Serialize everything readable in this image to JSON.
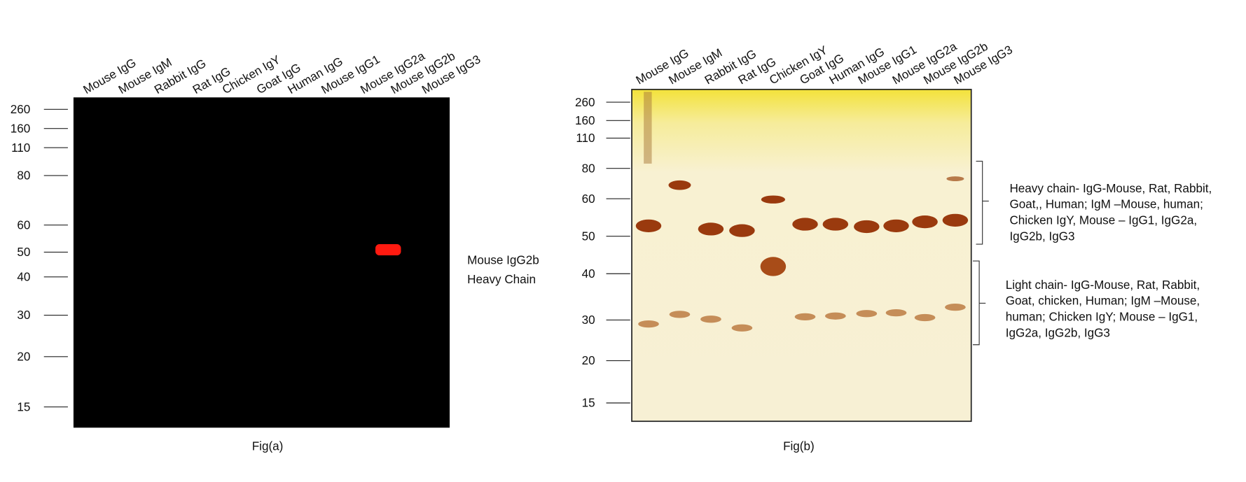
{
  "panel_a": {
    "lanes": [
      "Mouse IgG",
      "Mouse IgM",
      "Rabbit IgG",
      "Rat IgG",
      "Chicken IgY",
      "Goat IgG",
      "Human IgG",
      "Mouse IgG1",
      "Mouse IgG2a",
      "Mouse IgG2b",
      "Mouse IgG3"
    ],
    "markers": [
      260,
      160,
      110,
      80,
      60,
      50,
      40,
      30,
      20,
      15
    ],
    "annotation": [
      "Mouse IgG2b",
      "Heavy Chain"
    ],
    "caption": "Fig(a)"
  },
  "panel_b": {
    "lanes": [
      "Mouse IgG",
      "Mouse IgM",
      "Rabbit IgG",
      "Rat IgG",
      "Chicken IgY",
      "Goat IgG",
      "Human IgG",
      "Mouse IgG1",
      "Mouse IgG2a",
      "Mouse IgG2b",
      "Mouse IgG3"
    ],
    "markers": [
      260,
      160,
      110,
      80,
      60,
      50,
      40,
      30,
      20,
      15
    ],
    "heavy_chain_note": [
      "Heavy chain- IgG-Mouse, Rat, Rabbit,",
      "Goat,, Human; IgM –Mouse, human;",
      "Chicken IgY, Mouse – IgG1, IgG2a,",
      "IgG2b, IgG3"
    ],
    "light_chain_note": [
      "Light chain- IgG-Mouse, Rat, Rabbit,",
      "Goat, chicken, Human; IgM –Mouse,",
      "human; Chicken IgY; Mouse – IgG1,",
      "IgG2a, IgG2b, IgG3"
    ],
    "caption": "Fig(b)"
  }
}
